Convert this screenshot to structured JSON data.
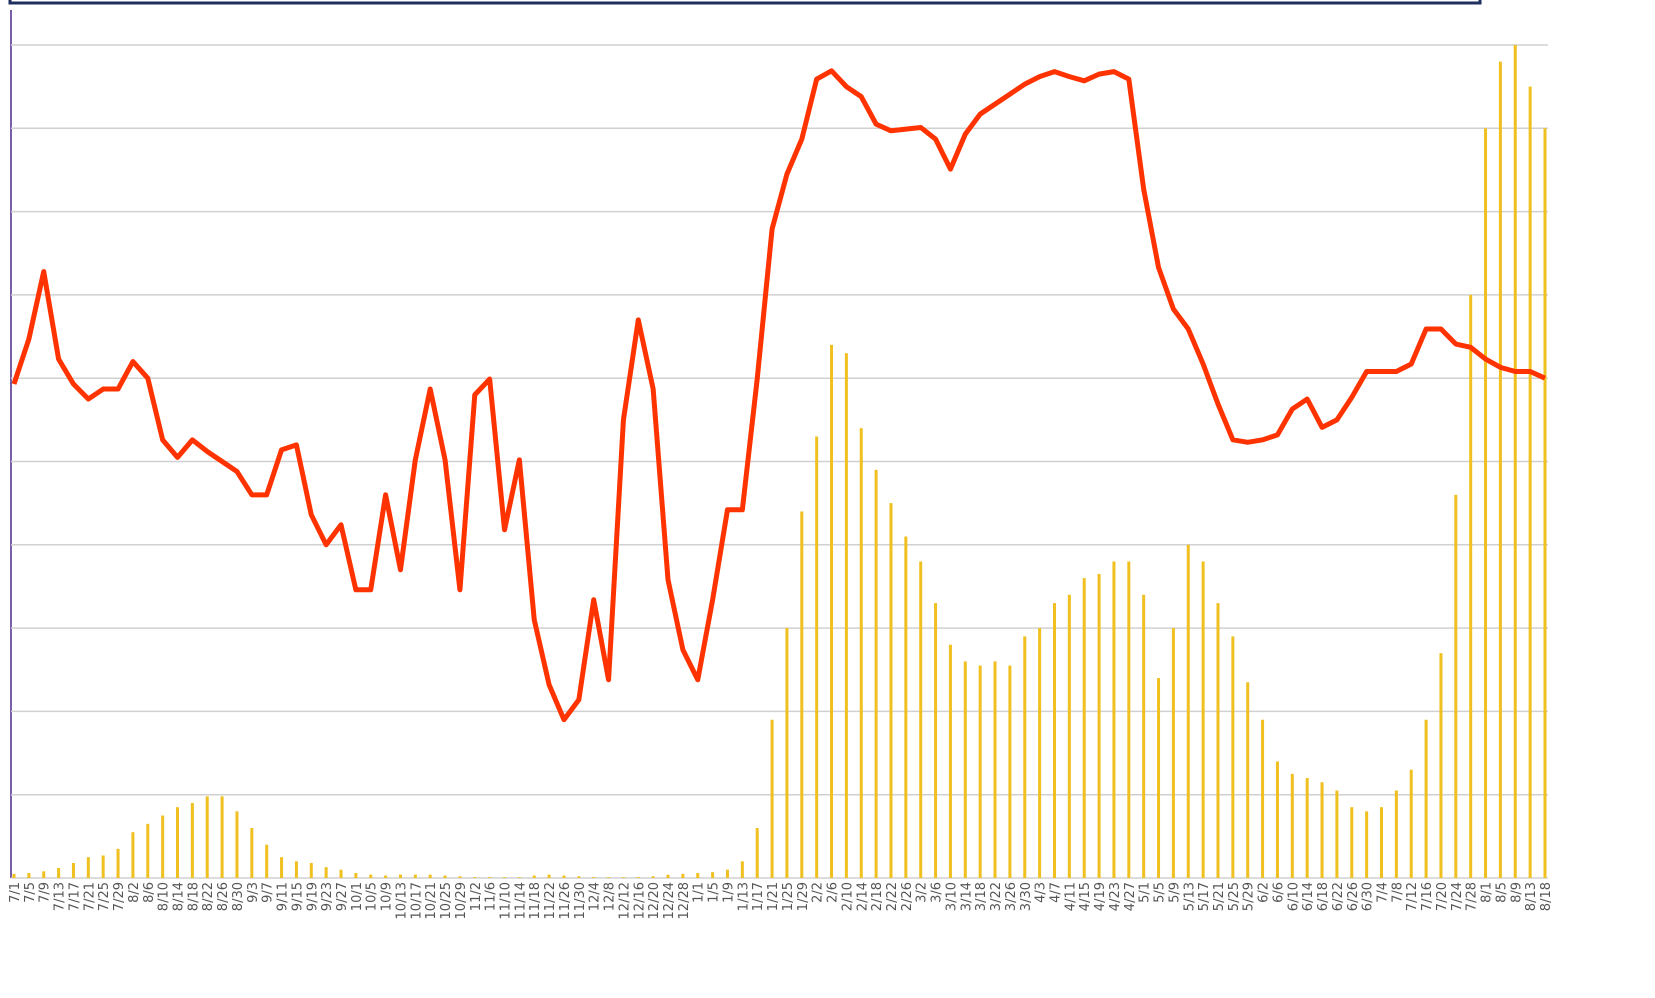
{
  "chart_data": {
    "type": "bar-line",
    "categories": [
      "7/1",
      "7/5",
      "7/9",
      "7/13",
      "7/17",
      "7/21",
      "7/25",
      "7/29",
      "8/2",
      "8/6",
      "8/10",
      "8/14",
      "8/18",
      "8/22",
      "8/26",
      "8/30",
      "9/3",
      "9/7",
      "9/11",
      "9/15",
      "9/19",
      "9/23",
      "9/27",
      "10/1",
      "10/5",
      "10/9",
      "10/13",
      "10/17",
      "10/21",
      "10/25",
      "10/29",
      "11/2",
      "11/6",
      "11/10",
      "11/14",
      "11/18",
      "11/22",
      "11/26",
      "11/30",
      "12/4",
      "12/8",
      "12/12",
      "12/16",
      "12/20",
      "12/24",
      "12/28",
      "1/1",
      "1/5",
      "1/9",
      "1/13",
      "1/17",
      "1/21",
      "1/25",
      "1/29",
      "2/2",
      "2/6",
      "2/10",
      "2/14",
      "2/18",
      "2/22",
      "2/26",
      "3/2",
      "3/6",
      "3/10",
      "3/14",
      "3/18",
      "3/22",
      "3/26",
      "3/30",
      "4/3",
      "4/7",
      "4/11",
      "4/15",
      "4/19",
      "4/23",
      "4/27",
      "5/1",
      "5/5",
      "5/9",
      "5/13",
      "5/17",
      "5/21",
      "5/25",
      "5/29",
      "6/2",
      "6/6",
      "6/10",
      "6/14",
      "6/18",
      "6/22",
      "6/26",
      "6/30",
      "7/4",
      "7/8",
      "7/12",
      "7/16",
      "7/20",
      "7/24",
      "7/28",
      "8/1",
      "8/5",
      "8/9",
      "8/13",
      "8/18"
    ],
    "series": [
      {
        "kind": "bar",
        "color": "#f0c020",
        "values": [
          0.05,
          0.06,
          0.08,
          0.12,
          0.18,
          0.25,
          0.27,
          0.35,
          0.55,
          0.65,
          0.75,
          0.85,
          0.9,
          0.98,
          0.98,
          0.8,
          0.6,
          0.4,
          0.25,
          0.2,
          0.18,
          0.13,
          0.1,
          0.06,
          0.04,
          0.03,
          0.04,
          0.04,
          0.04,
          0.03,
          0.02,
          0.01,
          0.01,
          0.01,
          0.01,
          0.03,
          0.04,
          0.03,
          0.02,
          0.01,
          0.01,
          0.01,
          0.01,
          0.02,
          0.04,
          0.05,
          0.06,
          0.07,
          0.1,
          0.2,
          0.6,
          1.9,
          3.0,
          4.4,
          5.3,
          6.4,
          6.3,
          5.4,
          4.9,
          4.5,
          4.1,
          3.8,
          3.3,
          2.8,
          2.6,
          2.55,
          2.6,
          2.55,
          2.9,
          3.0,
          3.3,
          3.4,
          3.6,
          3.65,
          3.8,
          3.8,
          3.4,
          2.4,
          3.0,
          4.0,
          3.8,
          3.3,
          2.9,
          2.35,
          1.9,
          1.4,
          1.25,
          1.2,
          1.15,
          1.05,
          0.85,
          0.8,
          0.85,
          1.05,
          1.3,
          1.9,
          2.7,
          4.6,
          7.0,
          9.0,
          9.8,
          10.0,
          9.5,
          9.0
        ]
      },
      {
        "kind": "line",
        "color": "#ff3300",
        "values": [
          5.93,
          6.47,
          7.28,
          6.23,
          5.93,
          5.75,
          5.87,
          5.87,
          6.2,
          6.0,
          5.26,
          5.05,
          5.26,
          5.12,
          5.0,
          4.88,
          4.6,
          4.6,
          5.14,
          5.2,
          4.36,
          4.0,
          4.24,
          3.46,
          3.46,
          4.6,
          3.7,
          5.02,
          5.87,
          5.02,
          3.46,
          5.8,
          5.99,
          4.18,
          5.02,
          3.1,
          2.32,
          1.9,
          2.14,
          3.34,
          2.38,
          5.5,
          6.7,
          5.87,
          3.58,
          2.74,
          2.38,
          3.34,
          4.42,
          4.42,
          5.99,
          7.79,
          8.45,
          8.87,
          9.59,
          9.69,
          9.5,
          9.38,
          9.05,
          8.97,
          8.99,
          9.01,
          8.87,
          8.51,
          8.93,
          9.17,
          9.29,
          9.41,
          9.53,
          9.62,
          9.68,
          9.62,
          9.57,
          9.65,
          9.68,
          9.59,
          8.27,
          7.33,
          6.83,
          6.59,
          6.17,
          5.69,
          5.26,
          5.23,
          5.26,
          5.32,
          5.63,
          5.75,
          5.41,
          5.5,
          5.77,
          6.08,
          6.08,
          6.08,
          6.17,
          6.59,
          6.59,
          6.41,
          6.37,
          6.23,
          6.13,
          6.08,
          6.08,
          6.0
        ]
      }
    ],
    "ylim": [
      0,
      10.3
    ],
    "yticks": [
      0,
      1,
      2,
      3,
      4,
      5,
      6,
      7,
      8,
      9,
      10
    ],
    "grid": true
  }
}
